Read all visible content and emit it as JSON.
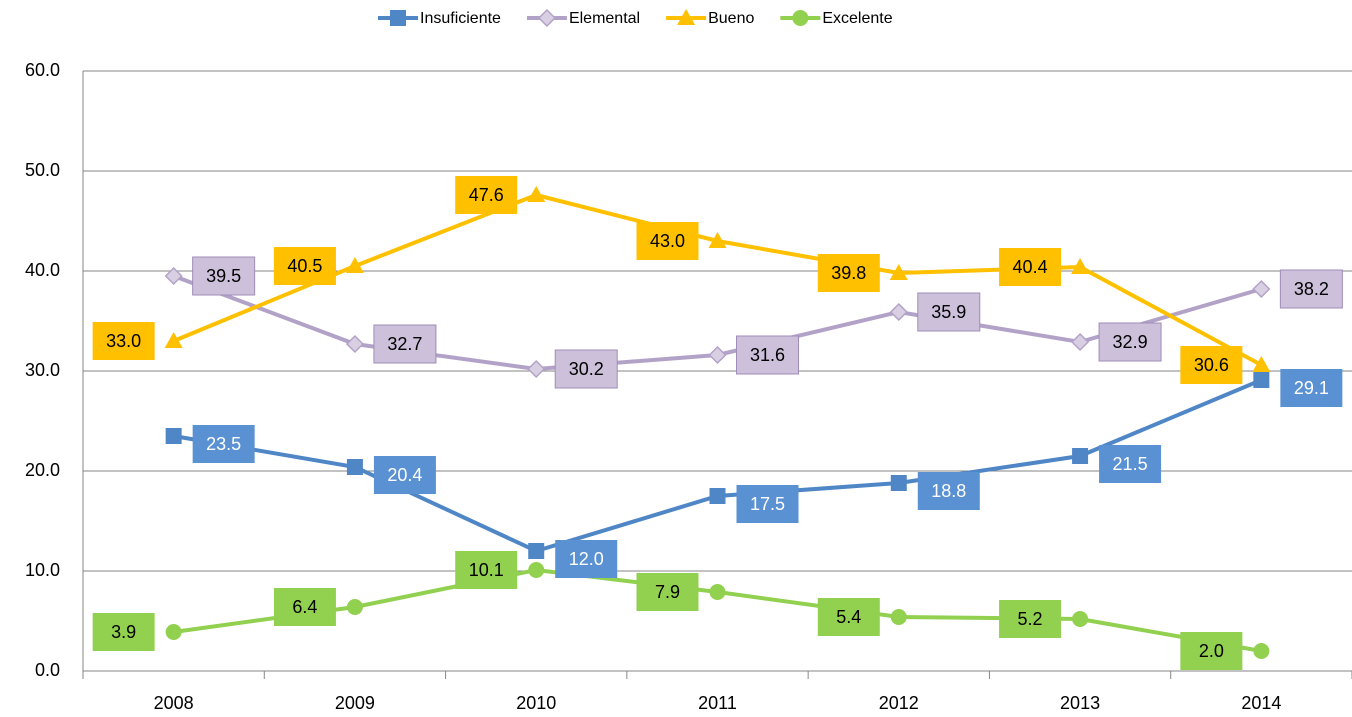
{
  "chart_data": {
    "type": "line",
    "categories": [
      "2008",
      "2009",
      "2010",
      "2011",
      "2012",
      "2013",
      "2014"
    ],
    "series": [
      {
        "name": "Insuficiente",
        "color": "#4f86c6",
        "values": [
          23.5,
          20.4,
          12.0,
          17.5,
          18.8,
          21.5,
          29.1
        ],
        "value_labels": [
          "23.5",
          "20.4",
          "12.0",
          "17.5",
          "18.8",
          "21.5",
          "29.1"
        ]
      },
      {
        "name": "Elemental",
        "color": "#b3a2c7",
        "values": [
          39.5,
          32.7,
          30.2,
          31.6,
          35.9,
          32.9,
          38.2
        ],
        "value_labels": [
          "39.5",
          "32.7",
          "30.2",
          "31.6",
          "35.9",
          "32.9",
          "38.2"
        ]
      },
      {
        "name": "Bueno",
        "color": "#ffc000",
        "values": [
          33.0,
          40.5,
          47.6,
          43.0,
          39.8,
          40.4,
          30.6
        ],
        "value_labels": [
          "33.0",
          "40.5",
          "47.6",
          "43.0",
          "39.8",
          "40.4",
          "30.6"
        ]
      },
      {
        "name": "Excelente",
        "color": "#92d050",
        "values": [
          3.9,
          6.4,
          10.1,
          7.9,
          5.4,
          5.2,
          2.0
        ],
        "value_labels": [
          "3.9",
          "6.4",
          "10.1",
          "7.9",
          "5.4",
          "5.2",
          "2.0"
        ]
      }
    ],
    "ylim": [
      0,
      60
    ],
    "yticks": [
      {
        "value": 0,
        "label": "0.0"
      },
      {
        "value": 10,
        "label": "10.0"
      },
      {
        "value": 20,
        "label": "20.0"
      },
      {
        "value": 30,
        "label": "30.0"
      },
      {
        "value": 40,
        "label": "40.0"
      },
      {
        "value": 50,
        "label": "50.0"
      },
      {
        "value": 60,
        "label": "60.0"
      }
    ],
    "grid": true,
    "legend": "top"
  }
}
